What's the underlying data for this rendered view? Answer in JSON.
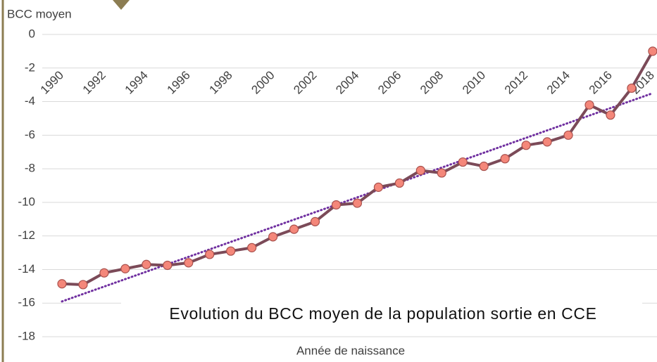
{
  "chart_data": {
    "type": "line",
    "title": "Evolution du BCC moyen de la population sortie en CCE",
    "y_label": "BCC moyen",
    "x_label": "Année de naissance",
    "categories": [
      "1990",
      null,
      "1992",
      null,
      "1994",
      null,
      "1996",
      null,
      "1998",
      null,
      "2000",
      null,
      "2002",
      null,
      "2004",
      null,
      "2006",
      null,
      "2008",
      null,
      "2010",
      null,
      "2012",
      null,
      "2014",
      null,
      "2016",
      null,
      "2018"
    ],
    "series": [
      {
        "color": "#7b4a58",
        "marker_color": "#f4877a",
        "values": [
          -14.85,
          -14.9,
          -14.2,
          -13.95,
          -13.7,
          -13.75,
          -13.6,
          -13.1,
          -12.9,
          -12.7,
          -12.05,
          -11.6,
          -11.15,
          -10.15,
          -10.05,
          -9.1,
          -8.85,
          -8.1,
          -8.25,
          -7.6,
          -7.85,
          -7.4,
          -6.6,
          -6.4,
          -6.0,
          -4.2,
          -4.8,
          -3.2,
          -1.0
        ]
      }
    ],
    "trendline": {
      "color": "#7030a0",
      "values": [
        -15.9,
        -3.5
      ]
    },
    "ylim": [
      0,
      -18
    ],
    "yticks": [
      0,
      -2,
      -4,
      -6,
      -8,
      -10,
      -12,
      -14,
      -16,
      -18
    ],
    "grid": true
  }
}
